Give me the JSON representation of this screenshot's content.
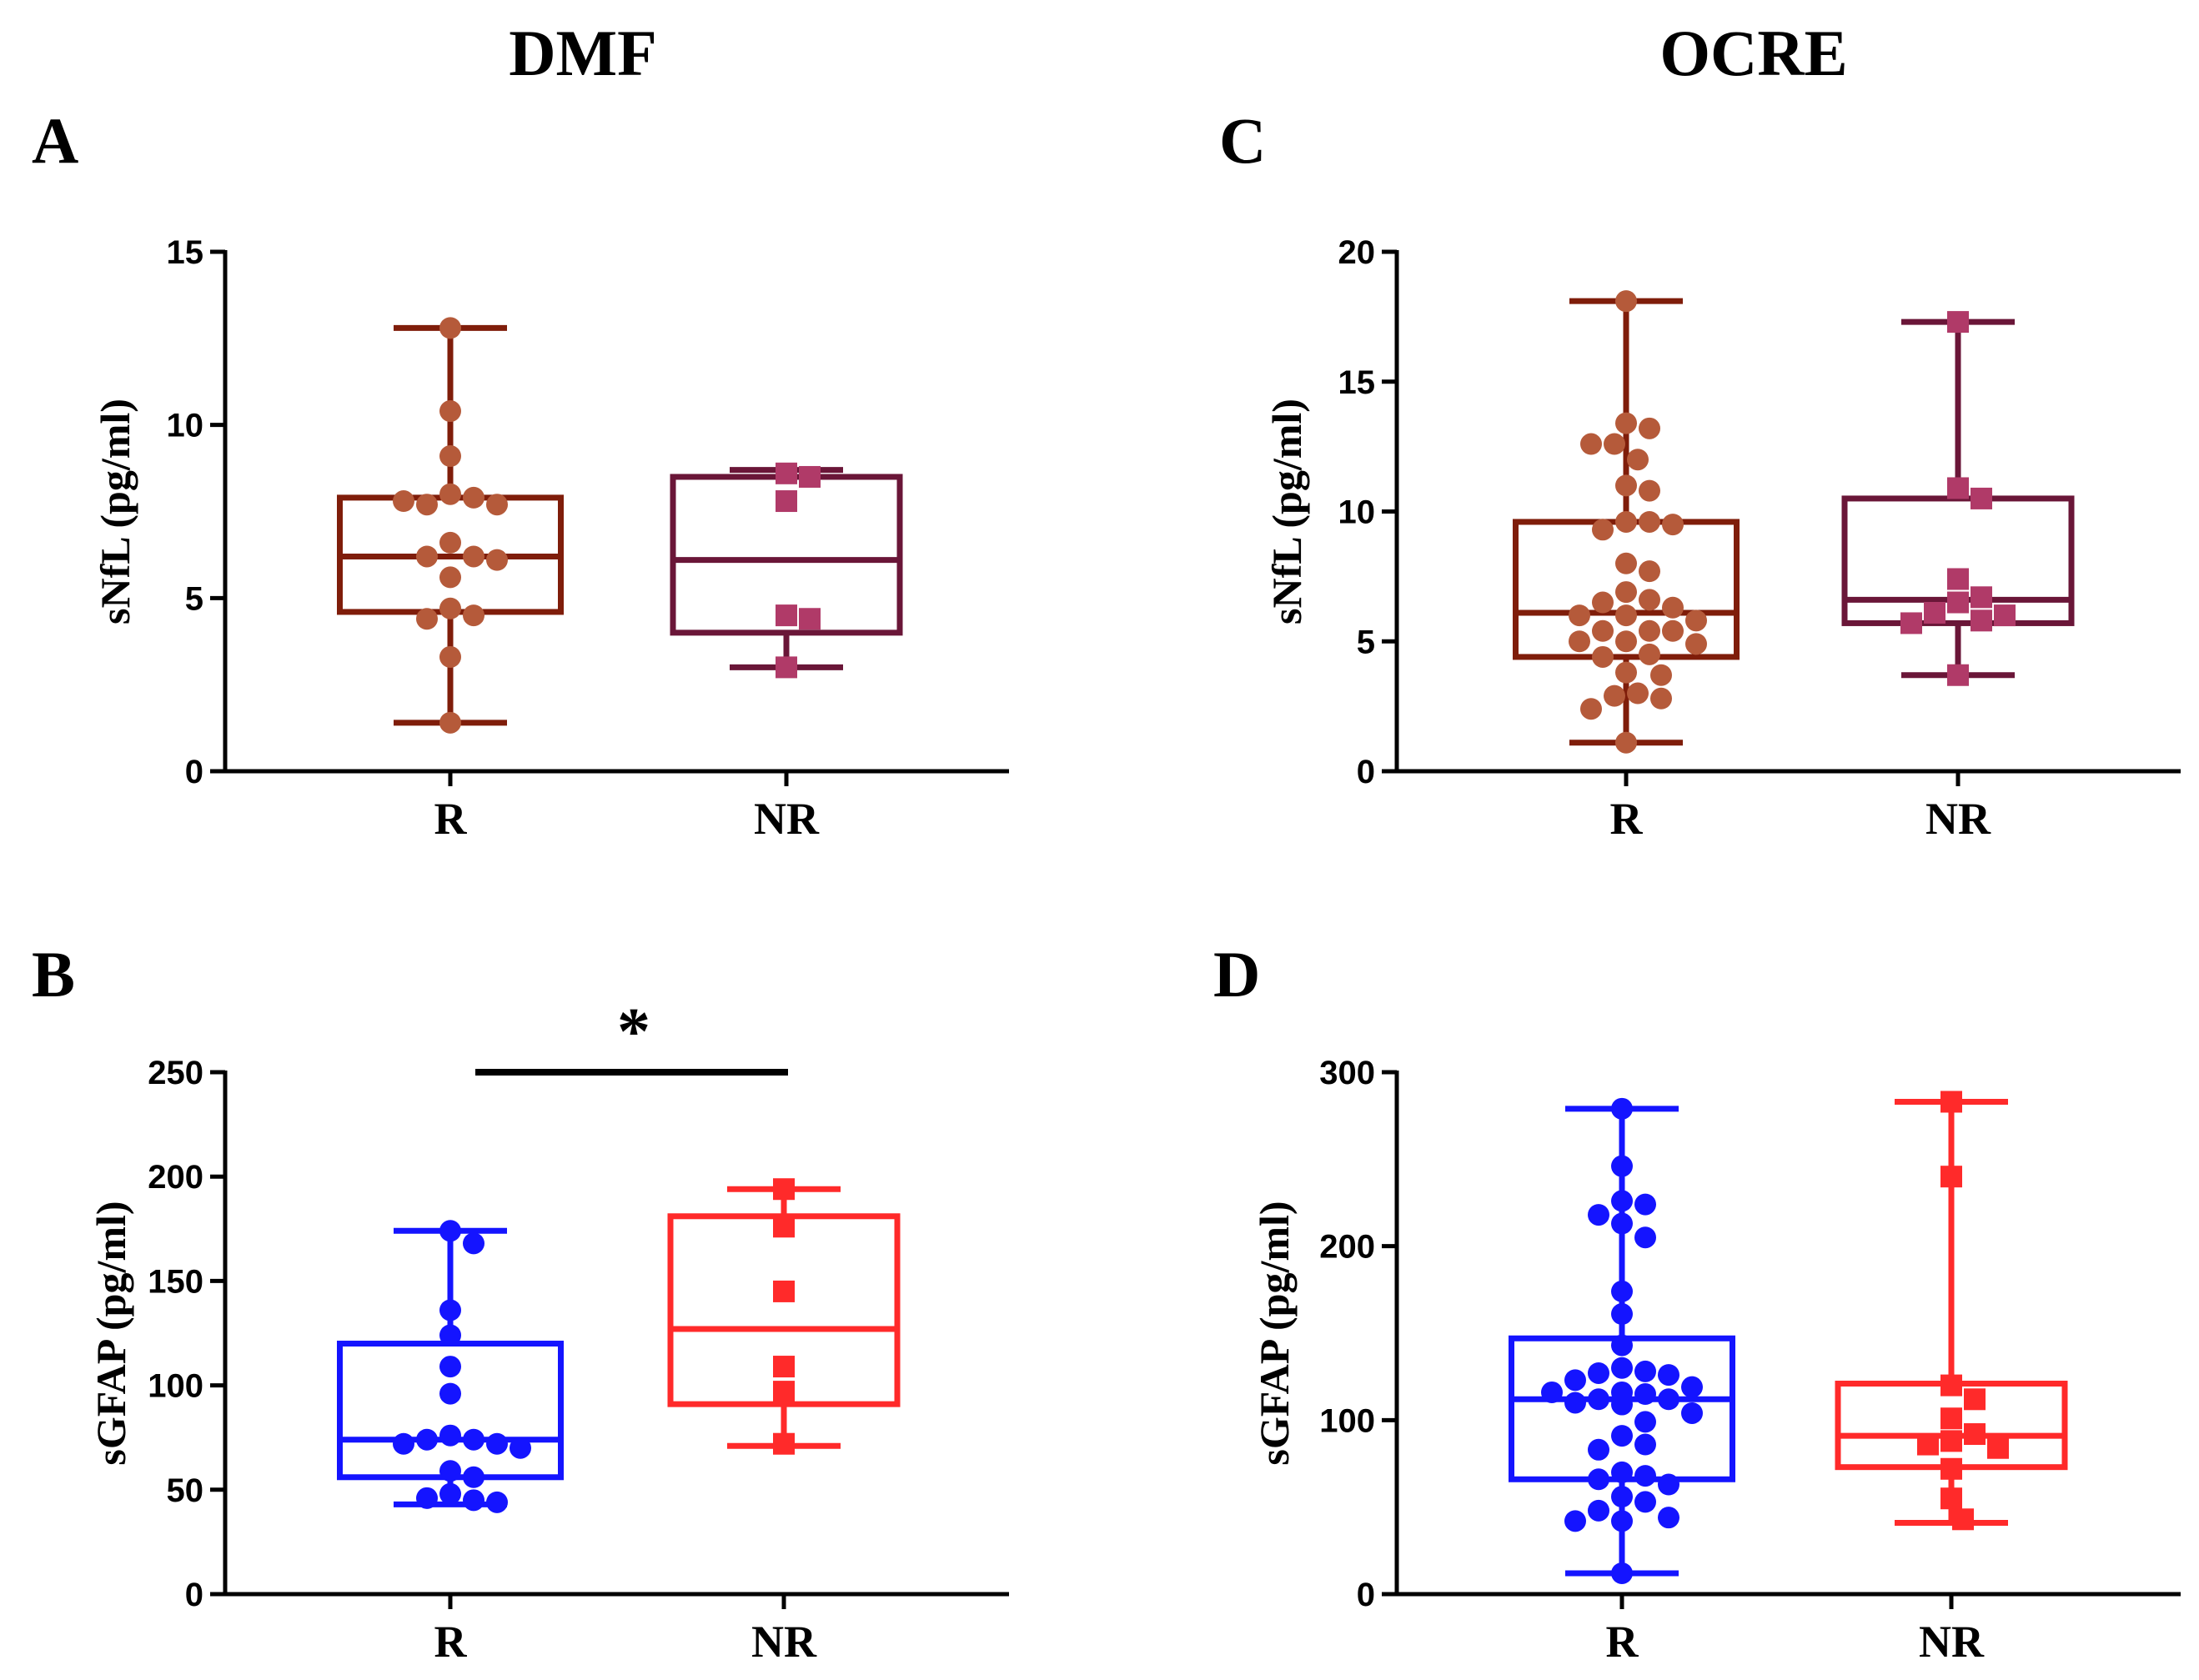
{
  "column_titles": [
    "DMF",
    "OCRE"
  ],
  "chart_data": [
    {
      "panel": "A",
      "type": "box",
      "ylabel": "sNfL (pg/ml)",
      "ylim": [
        0,
        15
      ],
      "yticks": [
        0,
        5,
        10,
        15
      ],
      "categories": [
        "R",
        "NR"
      ],
      "groups": [
        {
          "name": "R",
          "color": "#7F1D0A",
          "point_color": "#B55A3A",
          "marker": "circle",
          "min": 1.4,
          "q1": 4.6,
          "median": 6.2,
          "q3": 7.9,
          "max": 12.8,
          "points": [
            12.8,
            10.4,
            9.1,
            8.0,
            7.9,
            7.7,
            7.7,
            7.8,
            6.6,
            6.2,
            6.2,
            6.1,
            5.6,
            4.7,
            4.5,
            4.4,
            3.3,
            1.4
          ]
        },
        {
          "name": "NR",
          "color": "#6A1638",
          "point_color": "#B03A68",
          "marker": "square",
          "min": 3.0,
          "q1": 4.0,
          "median": 6.1,
          "q3": 8.5,
          "max": 8.7,
          "points": [
            8.6,
            8.5,
            7.8,
            4.5,
            4.4,
            3.0
          ]
        }
      ],
      "significance": null
    },
    {
      "panel": "B",
      "type": "box",
      "ylabel": "sGFAP (pg/ml)",
      "ylim": [
        0,
        250
      ],
      "yticks": [
        0,
        50,
        100,
        150,
        200,
        250
      ],
      "categories": [
        "R",
        "NR"
      ],
      "groups": [
        {
          "name": "R",
          "color": "#1414FF",
          "point_color": "#1414FF",
          "marker": "circle",
          "min": 43,
          "q1": 56,
          "median": 74,
          "q3": 120,
          "max": 174,
          "points": [
            174,
            168,
            136,
            124,
            109,
            96,
            76,
            74,
            74,
            72,
            72,
            70,
            59,
            56,
            48,
            46,
            45,
            44
          ]
        },
        {
          "name": "NR",
          "color": "#FF2A2A",
          "point_color": "#FF2A2A",
          "marker": "square",
          "min": 71,
          "q1": 91,
          "median": 127,
          "q3": 181,
          "max": 194,
          "points": [
            194,
            176,
            145,
            109,
            97,
            72
          ]
        }
      ],
      "significance": {
        "between": [
          "R",
          "NR"
        ],
        "label": "*",
        "y": 250
      }
    },
    {
      "panel": "C",
      "type": "box",
      "ylabel": "sNfL (pg/ml)",
      "ylim": [
        0,
        20
      ],
      "yticks": [
        0,
        5,
        10,
        15,
        20
      ],
      "categories": [
        "R",
        "NR"
      ],
      "groups": [
        {
          "name": "R",
          "color": "#7F1D0A",
          "point_color": "#B55A3A",
          "marker": "circle",
          "min": 1.1,
          "q1": 4.4,
          "median": 6.1,
          "q3": 9.6,
          "max": 18.1,
          "points": [
            18.1,
            13.4,
            13.2,
            12.6,
            12.6,
            12.0,
            11.0,
            10.8,
            9.6,
            9.6,
            9.3,
            9.5,
            8.0,
            7.7,
            6.9,
            6.6,
            6.5,
            6.3,
            6.0,
            6.0,
            5.8,
            5.4,
            5.4,
            5.4,
            5.0,
            5.0,
            4.9,
            4.5,
            4.4,
            3.8,
            3.7,
            3.0,
            2.9,
            2.8,
            2.4,
            1.1
          ]
        },
        {
          "name": "NR",
          "color": "#6A1638",
          "point_color": "#B03A68",
          "marker": "square",
          "min": 3.7,
          "q1": 5.7,
          "median": 6.6,
          "q3": 10.5,
          "max": 17.3,
          "points": [
            17.3,
            10.9,
            10.5,
            7.4,
            6.7,
            6.5,
            6.1,
            6.0,
            5.8,
            5.7,
            3.7
          ]
        }
      ],
      "significance": null
    },
    {
      "panel": "D",
      "type": "box",
      "ylabel": "sGFAP (pg/ml)",
      "ylim": [
        0,
        300
      ],
      "yticks": [
        0,
        100,
        200,
        300
      ],
      "categories": [
        "R",
        "NR"
      ],
      "groups": [
        {
          "name": "R",
          "color": "#1414FF",
          "point_color": "#1414FF",
          "marker": "circle",
          "min": 12,
          "q1": 66,
          "median": 112,
          "q3": 147,
          "max": 279,
          "points": [
            279,
            246,
            226,
            224,
            218,
            213,
            205,
            174,
            161,
            143,
            130,
            128,
            127,
            126,
            123,
            119,
            116,
            116,
            115,
            112,
            112,
            110,
            109,
            104,
            99,
            91,
            86,
            83,
            70,
            68,
            66,
            63,
            56,
            53,
            48,
            44,
            42,
            42,
            12
          ]
        },
        {
          "name": "NR",
          "color": "#FF2A2A",
          "point_color": "#FF2A2A",
          "marker": "square",
          "min": 41,
          "q1": 73,
          "median": 91,
          "q3": 121,
          "max": 283,
          "points": [
            283,
            240,
            120,
            112,
            101,
            92,
            88,
            86,
            84,
            72,
            55,
            43
          ]
        }
      ],
      "significance": null
    }
  ]
}
